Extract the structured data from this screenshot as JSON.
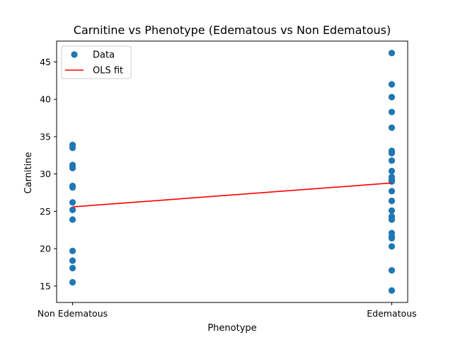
{
  "chart_data": {
    "type": "scatter",
    "title": "Carnitine vs Phenotype (Edematous vs Non Edematous)",
    "xlabel": "Phenotype",
    "ylabel": "Carnitine",
    "categories": [
      "Non Edematous",
      "Edematous"
    ],
    "xlim": [
      -0.05,
      1.05
    ],
    "ylim": [
      12.8,
      47.8
    ],
    "yticks": [
      15,
      20,
      25,
      30,
      35,
      40,
      45
    ],
    "legend_position": "top-left",
    "series": [
      {
        "name": "Data",
        "kind": "scatter",
        "color": "#1f77b4",
        "points": [
          {
            "x": 0,
            "y": 33.9
          },
          {
            "x": 0,
            "y": 33.5
          },
          {
            "x": 0,
            "y": 31.2
          },
          {
            "x": 0,
            "y": 30.8
          },
          {
            "x": 0,
            "y": 28.4
          },
          {
            "x": 0,
            "y": 28.2
          },
          {
            "x": 0,
            "y": 26.2
          },
          {
            "x": 0,
            "y": 25.2
          },
          {
            "x": 0,
            "y": 23.9
          },
          {
            "x": 0,
            "y": 19.7
          },
          {
            "x": 0,
            "y": 18.4
          },
          {
            "x": 0,
            "y": 17.4
          },
          {
            "x": 0,
            "y": 15.5
          },
          {
            "x": 1,
            "y": 46.2
          },
          {
            "x": 1,
            "y": 42.0
          },
          {
            "x": 1,
            "y": 40.3
          },
          {
            "x": 1,
            "y": 38.3
          },
          {
            "x": 1,
            "y": 36.2
          },
          {
            "x": 1,
            "y": 33.1
          },
          {
            "x": 1,
            "y": 32.8
          },
          {
            "x": 1,
            "y": 31.8
          },
          {
            "x": 1,
            "y": 30.4
          },
          {
            "x": 1,
            "y": 29.6
          },
          {
            "x": 1,
            "y": 29.2
          },
          {
            "x": 1,
            "y": 29.0
          },
          {
            "x": 1,
            "y": 27.7
          },
          {
            "x": 1,
            "y": 26.4
          },
          {
            "x": 1,
            "y": 25.1
          },
          {
            "x": 1,
            "y": 24.3
          },
          {
            "x": 1,
            "y": 23.9
          },
          {
            "x": 1,
            "y": 22.1
          },
          {
            "x": 1,
            "y": 21.6
          },
          {
            "x": 1,
            "y": 21.4
          },
          {
            "x": 1,
            "y": 20.3
          },
          {
            "x": 1,
            "y": 17.1
          },
          {
            "x": 1,
            "y": 14.4
          }
        ]
      },
      {
        "name": "OLS fit",
        "kind": "line",
        "color": "#ff0000",
        "points": [
          {
            "x": 0,
            "y": 25.6
          },
          {
            "x": 1,
            "y": 28.8
          }
        ]
      }
    ]
  }
}
